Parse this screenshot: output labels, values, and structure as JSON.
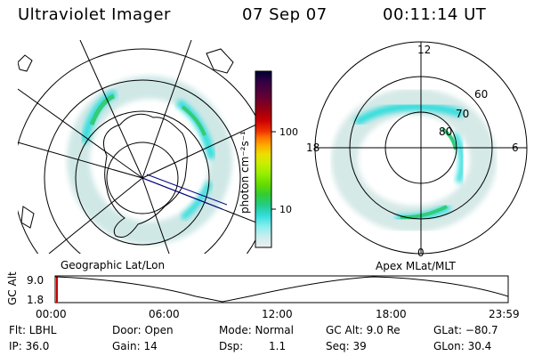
{
  "header": {
    "instrument": "Ultraviolet Imager",
    "date": "07 Sep 07",
    "time": "00:11:14 UT"
  },
  "left_panel": {
    "caption": "Geographic Lat/Lon"
  },
  "right_panel": {
    "caption": "Apex MLat/MLT",
    "mlt_labels": [
      "12",
      "18",
      "6",
      "0"
    ],
    "lat_labels": [
      "60",
      "70",
      "80"
    ]
  },
  "colorbar": {
    "unit_label": "photon cm⁻²s⁻¹",
    "tick_labels": [
      "100",
      "10"
    ],
    "colors": [
      "#000033",
      "#330044",
      "#660033",
      "#990011",
      "#cc0000",
      "#ee3300",
      "#ff7700",
      "#ffaa00",
      "#eedd00",
      "#ccee00",
      "#99ee00",
      "#66dd00",
      "#33cc33",
      "#22cc88",
      "#33dddd",
      "#88eeee",
      "#bbeeee",
      "#dddddd",
      "#eeeeee"
    ]
  },
  "altitude_plot": {
    "y_label": "GC Alt",
    "y_ticks": [
      "9.0",
      "1.8"
    ],
    "x_ticks": [
      "00:00",
      "06:00",
      "12:00",
      "18:00",
      "23:59"
    ]
  },
  "info": {
    "filter": "Flt: LBHL",
    "ip": "IP: 36.0",
    "door": "Door: Open",
    "gain": "Gain: 14",
    "mode": "Mode: Normal",
    "dsp": "Dsp:",
    "dsp_value": "1.1",
    "gc_alt": "GC Alt: 9.0 Re",
    "seq": "Seq: 39",
    "glat": "GLat: −80.7",
    "glon": "GLon:  30.4"
  },
  "colors": {
    "aurora_weak": "#cfe8e6",
    "aurora_mid": "#33dddd",
    "aurora_strong": "#33cc77",
    "red_marker": "#cc0000",
    "orbit_line": "#000088"
  }
}
